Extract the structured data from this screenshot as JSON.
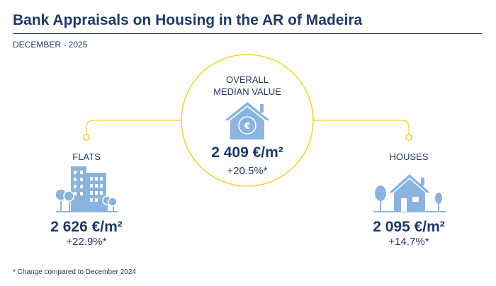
{
  "header": {
    "title": "Bank Appraisals on Housing in the AR of Madeira",
    "subtitle": "DECEMBER - 2025"
  },
  "overall": {
    "label_line1": "OVERALL",
    "label_line2": "MEDIAN VALUE",
    "value": "2 409 €/m²",
    "change": "+20.5%*",
    "icon": "house-euro-icon"
  },
  "flats": {
    "label": "FLATS",
    "value": "2 626 €/m²",
    "change": "+22.9%*",
    "icon": "apartment-buildings-icon"
  },
  "houses": {
    "label": "HOUSES",
    "value": "2 095 €/m²",
    "change": "+14.7%*",
    "icon": "house-with-trees-icon"
  },
  "footnote": "* Change compared to December 2024",
  "colors": {
    "navy": "#1f3a66",
    "icon_blue": "#8ab4dd",
    "accent_yellow": "#f2cf2f"
  }
}
